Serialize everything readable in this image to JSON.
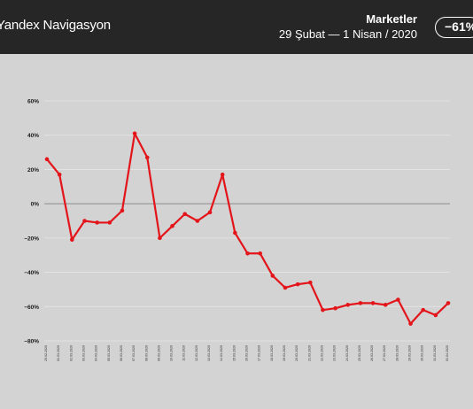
{
  "header": {
    "brand": "Yandex Navigasyon",
    "title": "Marketler",
    "subtitle": "29 Şubat  —  1 Nisan / 2020",
    "badge": "−61%"
  },
  "colors": {
    "background": "#d3d3d3",
    "header": "#262626",
    "line": "#e3141a",
    "zero_line": "#8c8c8c",
    "grid": "#e6e6e6"
  },
  "chart_data": {
    "type": "line",
    "title": "",
    "xlabel": "",
    "ylabel": "",
    "ylim": [
      -80,
      60
    ],
    "yticks": [
      60,
      40,
      20,
      0,
      -20,
      -40,
      -60,
      -80
    ],
    "ytick_labels": [
      "60%",
      "40%",
      "20%",
      "0%",
      "−20%",
      "−40%",
      "−60%",
      "−80%"
    ],
    "grid": true,
    "categories": [
      "29.02.2020",
      "01.03.2020",
      "02.03.2020",
      "03.03.2020",
      "04.03.2020",
      "05.03.2020",
      "06.03.2020",
      "07.03.2020",
      "08.03.2020",
      "09.03.2020",
      "10.03.2020",
      "11.03.2020",
      "12.03.2020",
      "13.03.2020",
      "14.03.2020",
      "15.03.2020",
      "16.03.2020",
      "17.03.2020",
      "18.03.2020",
      "19.03.2020",
      "20.03.2020",
      "21.03.2020",
      "22.03.2020",
      "23.03.2020",
      "24.03.2020",
      "25.03.2020",
      "26.03.2020",
      "27.03.2020",
      "28.03.2020",
      "29.03.2020",
      "30.03.2020",
      "31.03.2020",
      "01.04.2020"
    ],
    "series": [
      {
        "values": [
          26,
          17,
          -21,
          -10,
          -11,
          -11,
          -4,
          41,
          27,
          -20,
          -13,
          -6,
          -10,
          -5,
          17,
          -17,
          -29,
          -29,
          -42,
          -49,
          -47,
          -46,
          -62,
          -61,
          -59,
          -58,
          -58,
          -59,
          -56,
          -70,
          -62,
          -65,
          -58
        ]
      }
    ]
  }
}
